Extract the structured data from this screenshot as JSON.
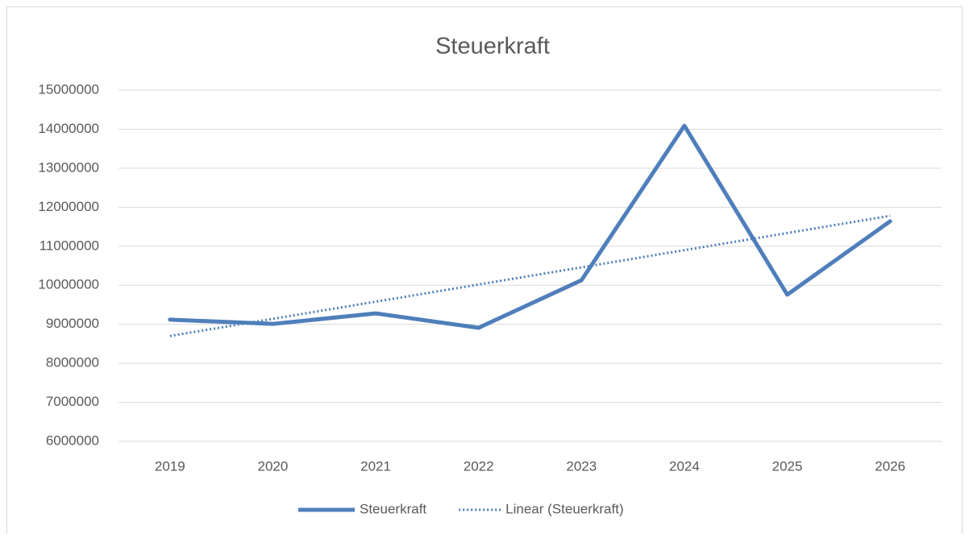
{
  "chart_data": {
    "type": "line",
    "title": "Steuerkraft",
    "categories": [
      "2019",
      "2020",
      "2021",
      "2022",
      "2023",
      "2024",
      "2025",
      "2026"
    ],
    "series": [
      {
        "name": "Steuerkraft",
        "color": "#4f7fbb",
        "style": "solid",
        "values": [
          9120000,
          9010000,
          9280000,
          8910000,
          10130000,
          14090000,
          9760000,
          11640000
        ]
      },
      {
        "name": "Linear (Steuerkraft)",
        "color": "#4f7fbb",
        "style": "dotted",
        "values": [
          8700000,
          9140000,
          9580000,
          10020000,
          10460000,
          10900000,
          11340000,
          11780000
        ]
      }
    ],
    "ylim": [
      6000000,
      15000000
    ],
    "yticks": [
      6000000,
      7000000,
      8000000,
      9000000,
      10000000,
      11000000,
      12000000,
      13000000,
      14000000,
      15000000
    ],
    "grid": true,
    "legend": "bottom"
  }
}
